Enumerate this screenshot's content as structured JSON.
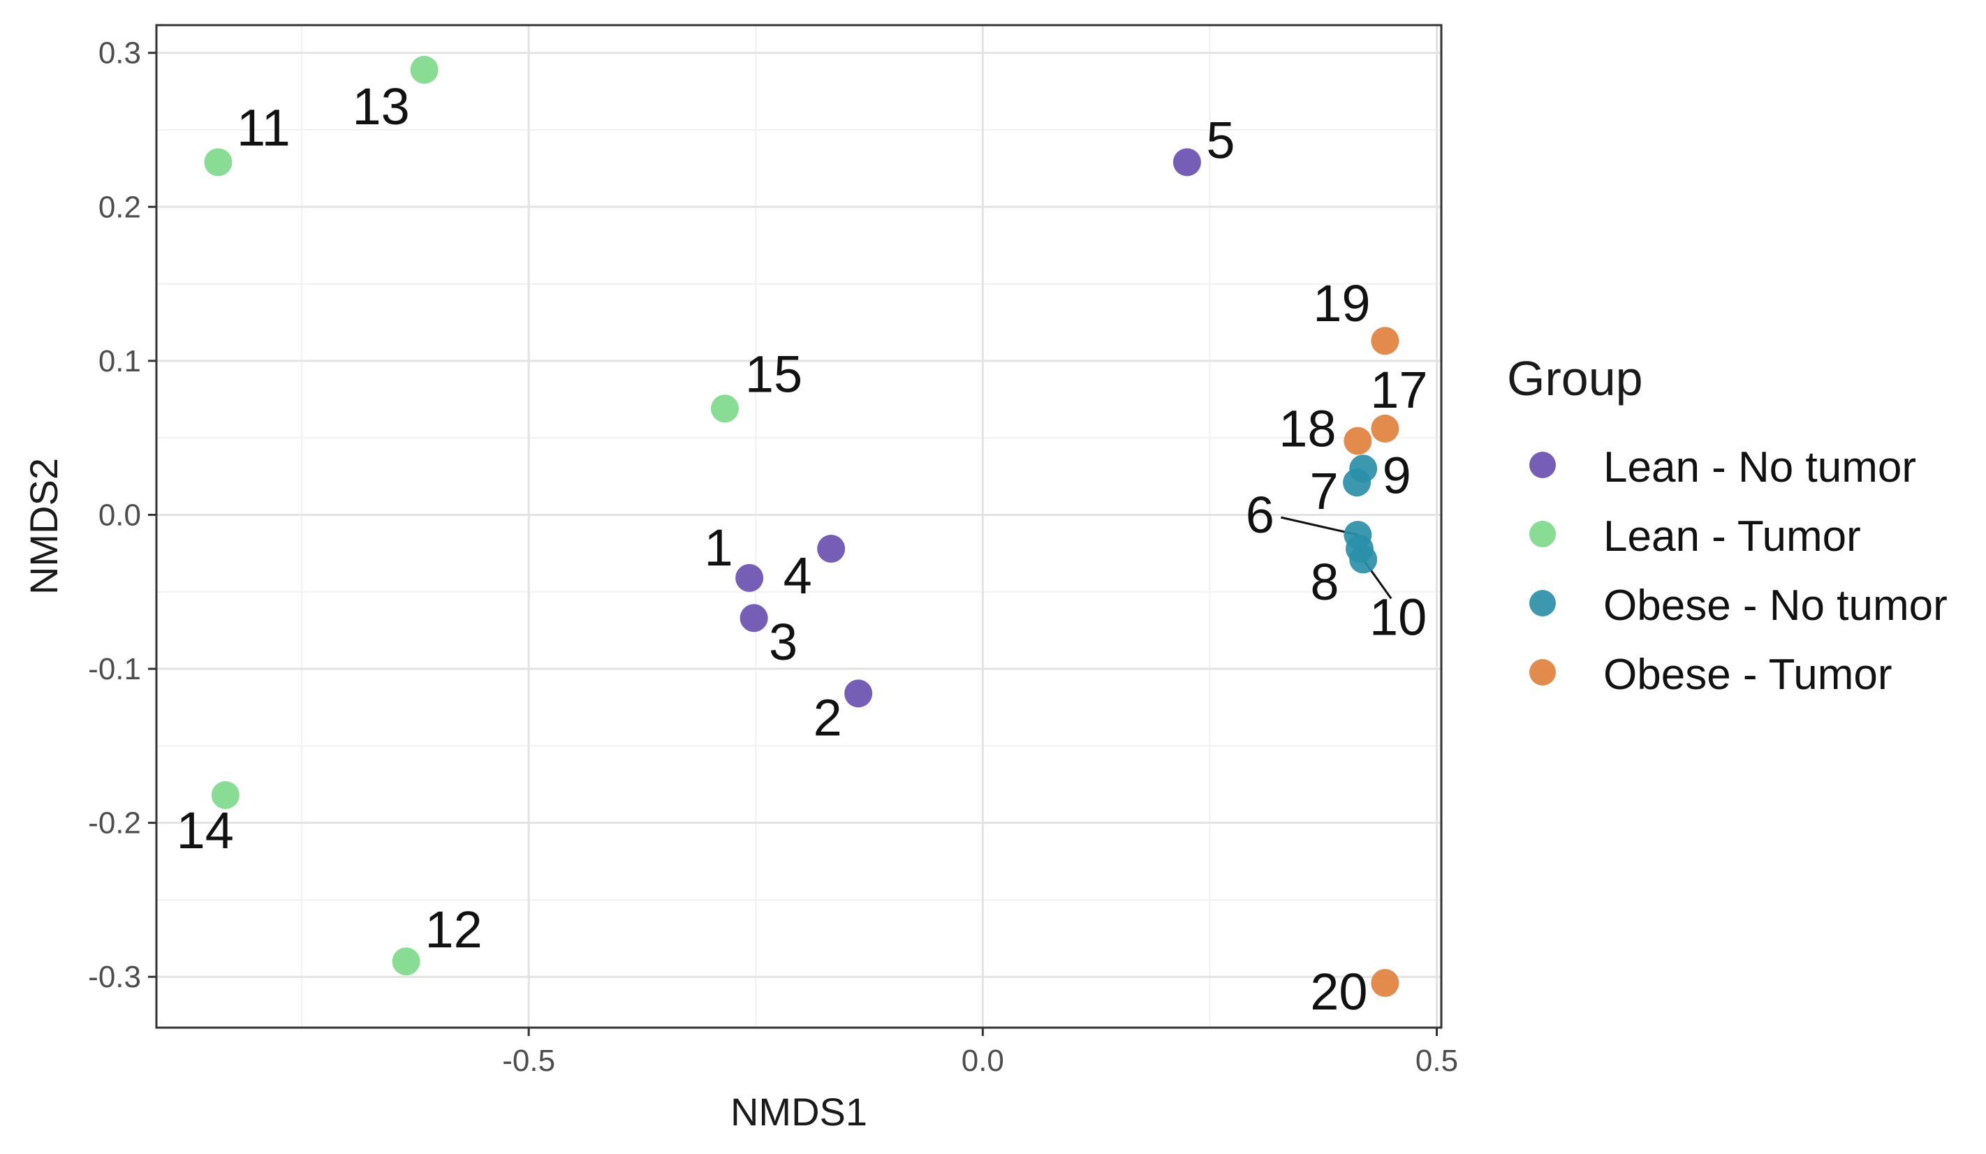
{
  "chart_data": {
    "type": "scatter",
    "title": "",
    "xlabel": "NMDS1",
    "ylabel": "NMDS2",
    "xlim": [
      -0.91,
      0.505
    ],
    "ylim": [
      -0.333,
      0.318
    ],
    "xticks": [
      -0.5,
      0.0,
      0.5
    ],
    "yticks": [
      -0.3,
      -0.2,
      -0.1,
      0.0,
      0.1,
      0.2,
      0.3
    ],
    "xtick_labels": [
      "-0.5",
      "0.0",
      "0.5"
    ],
    "ytick_labels": [
      "-0.3",
      "-0.2",
      "-0.1",
      "0.0",
      "0.1",
      "0.2",
      "0.3"
    ],
    "grid": true,
    "legend": {
      "title": "Group",
      "position": "right"
    },
    "series": [
      {
        "name": "Lean - No tumor",
        "color": "#6a4fb0",
        "points": [
          {
            "label": "1",
            "x": -0.257,
            "y": -0.041
          },
          {
            "label": "2",
            "x": -0.137,
            "y": -0.116
          },
          {
            "label": "3",
            "x": -0.252,
            "y": -0.067
          },
          {
            "label": "4",
            "x": -0.167,
            "y": -0.022
          },
          {
            "label": "5",
            "x": 0.225,
            "y": 0.229
          }
        ]
      },
      {
        "name": "Lean - Tumor",
        "color": "#7fd98a",
        "points": [
          {
            "label": "11",
            "x": -0.842,
            "y": 0.229
          },
          {
            "label": "12",
            "x": -0.635,
            "y": -0.29
          },
          {
            "label": "13",
            "x": -0.615,
            "y": 0.289
          },
          {
            "label": "14",
            "x": -0.834,
            "y": -0.182
          },
          {
            "label": "15",
            "x": -0.284,
            "y": 0.069
          }
        ]
      },
      {
        "name": "Obese - No tumor",
        "color": "#2a8fa8",
        "points": [
          {
            "label": "6",
            "x": 0.413,
            "y": -0.013
          },
          {
            "label": "7",
            "x": 0.412,
            "y": 0.021
          },
          {
            "label": "8",
            "x": 0.415,
            "y": -0.022
          },
          {
            "label": "9",
            "x": 0.419,
            "y": 0.03
          },
          {
            "label": "10",
            "x": 0.419,
            "y": -0.029
          }
        ]
      },
      {
        "name": "Obese - Tumor",
        "color": "#e0813d",
        "points": [
          {
            "label": "17",
            "x": 0.443,
            "y": 0.056
          },
          {
            "label": "18",
            "x": 0.413,
            "y": 0.048
          },
          {
            "label": "19",
            "x": 0.443,
            "y": 0.113
          },
          {
            "label": "20",
            "x": 0.443,
            "y": -0.304
          }
        ]
      }
    ]
  }
}
